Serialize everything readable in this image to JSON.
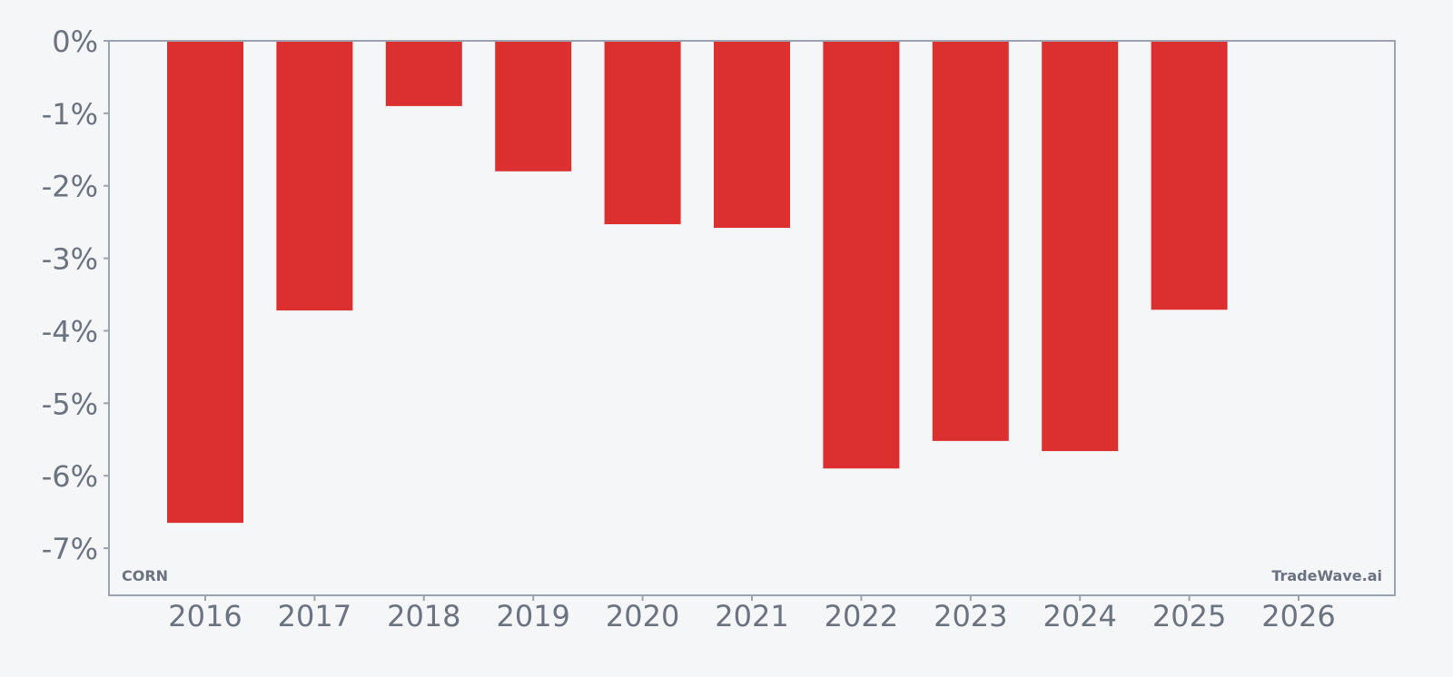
{
  "chart_data": {
    "type": "bar",
    "categories": [
      "2016",
      "2017",
      "2018",
      "2019",
      "2020",
      "2021",
      "2022",
      "2023",
      "2024",
      "2025",
      "2026"
    ],
    "values": [
      -6.65,
      -3.72,
      -0.9,
      -1.8,
      -2.53,
      -2.58,
      -5.9,
      -5.52,
      -5.66,
      -3.71,
      null
    ],
    "y_tick_labels": [
      "0%",
      "-1%",
      "-2%",
      "-3%",
      "-4%",
      "-5%",
      "-6%",
      "-7%"
    ],
    "y_ticks": [
      0,
      -1,
      -2,
      -3,
      -4,
      -5,
      -6,
      -7
    ],
    "ylim": [
      -7.65,
      0
    ],
    "grid": false,
    "title": "",
    "xlabel": "",
    "ylabel": ""
  },
  "labels": {
    "ticker": "CORN",
    "watermark": "TradeWave.ai"
  },
  "colors": {
    "bar": "#dc3030",
    "axis": "#9ca3af",
    "text": "#6b7280",
    "background": "#f4f6f8"
  }
}
